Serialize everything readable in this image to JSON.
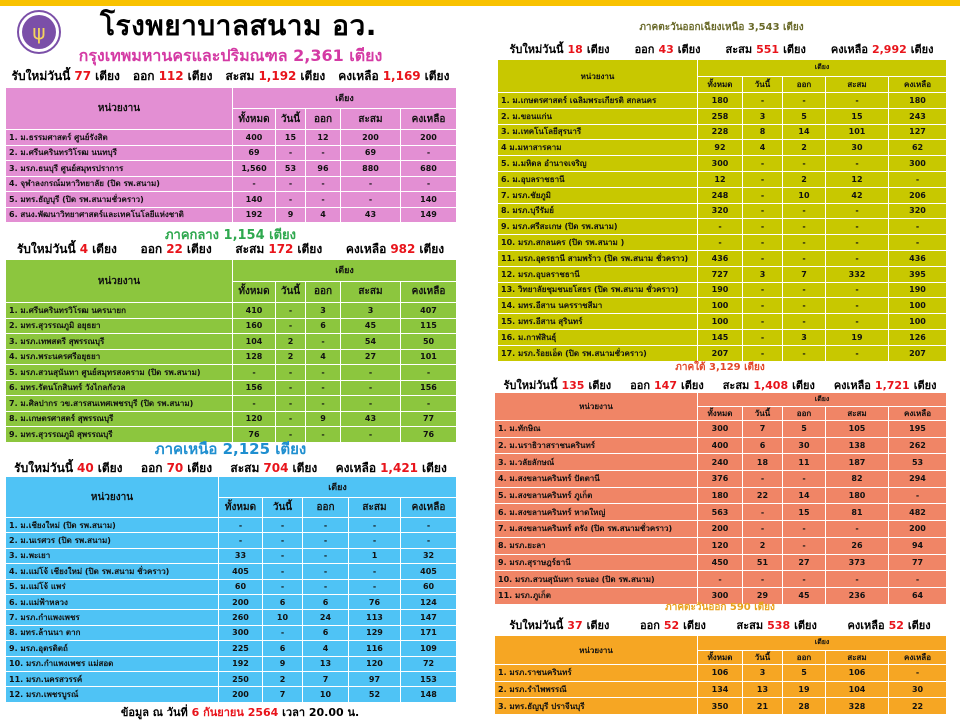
{
  "title": "โรงพยาบาลสนาม อว.",
  "logo_icon": "trident-seal",
  "labels": {
    "unit": "หน่วยงาน",
    "beds": "เตียง",
    "total": "ทั้งหมด",
    "today": "วันนี้",
    "out": "ออก",
    "accum": "สะสม",
    "remain": "คงเหลือ",
    "new_today": "รับใหม่วันนี้",
    "bed_unit": "เตียง"
  },
  "footer": {
    "prefix": "ข้อมูล ณ วันที่",
    "date": "6  กันยายน 2564",
    "suffix": "เวลา 20.00 น."
  },
  "regions": [
    {
      "id": "bangkok",
      "title": "กรุงเทพมหานครและปริมณฑล  2,361 เตียง",
      "colors": {
        "table": "#e38fd3",
        "title": "#d43aa4"
      },
      "summary": {
        "new": "77",
        "out": "112",
        "accum": "1,192",
        "remain": "1,169"
      },
      "rows": [
        [
          "1. ม.ธรรมศาสตร์ ศูนย์รังสิต",
          "400",
          "15",
          "12",
          "200",
          "200"
        ],
        [
          "2. ม.ศรีนครินทรวิโรฒ นนทบุรี",
          "69",
          "-",
          "-",
          "69",
          "-"
        ],
        [
          "3. มรภ.ธนบุรี ศูนย์สมุทรปราการ",
          "1,560",
          "53",
          "96",
          "880",
          "680"
        ],
        [
          "4. จุฬาลงกรณ์มหาวิทยาลัย  (ปิด รพ.สนาม)",
          "-",
          "-",
          "-",
          "-",
          "-"
        ],
        [
          "5. มทร.ธัญบุรี (ปิด รพ.สนามชั่วคราว)",
          "140",
          "-",
          "-",
          "-",
          "140"
        ],
        [
          "6. สนง.พัฒนาวิทยาศาสตร์และเทคโนโลยีแห่งชาติ",
          "192",
          "9",
          "4",
          "43",
          "149"
        ]
      ]
    },
    {
      "id": "central",
      "title": "ภาคกลาง  1,154 เตียง",
      "colors": {
        "table": "#8cc63e",
        "title": "#2ea84e"
      },
      "summary": {
        "new": "4",
        "out": "22",
        "accum": "172",
        "remain": "982"
      },
      "rows": [
        [
          "1. ม.ศรีนครินทรวิโรฒ นครนายก",
          "410",
          "-",
          "3",
          "3",
          "407"
        ],
        [
          "2. มทร.สุวรรณภูมิ อยุธยา",
          "160",
          "-",
          "6",
          "45",
          "115"
        ],
        [
          "3. มรภ.เทพสตรี สุพรรณบุรี",
          "104",
          "2",
          "-",
          "54",
          "50"
        ],
        [
          "4. มรภ.พระนครศรีอยุธยา",
          "128",
          "2",
          "4",
          "27",
          "101"
        ],
        [
          "5. มรภ.สวนสุนันทา ศูนย์สมุทรสงคราม  (ปิด รพ.สนาม)",
          "-",
          "-",
          "-",
          "-",
          "-"
        ],
        [
          "6. มทร.รัตนโกสินทร์ วังไกลกังวล",
          "156",
          "-",
          "-",
          "-",
          "156"
        ],
        [
          "7. ม.ศิลปากร วข.สารสนเทศเพชรบุรี (ปิด รพ.สนาม)",
          "-",
          "-",
          "-",
          "-",
          "-"
        ],
        [
          "8. ม.เกษตรศาสตร์ สุพรรณบุรี",
          "120",
          "-",
          "9",
          "43",
          "77"
        ],
        [
          "9. มทร.สุวรรณภูมิ  สุพรรณบุรี",
          "76",
          "-",
          "-",
          "-",
          "76"
        ]
      ]
    },
    {
      "id": "north",
      "title": "ภาคเหนือ  2,125 เตียง",
      "colors": {
        "table": "#4fc3f5",
        "title": "#1f8fd0"
      },
      "summary": {
        "new": "40",
        "out": "70",
        "accum": "704",
        "remain": "1,421"
      },
      "rows": [
        [
          "1. ม.เชียงใหม่  (ปิด รพ.สนาม)",
          "-",
          "-",
          "-",
          "-",
          "-"
        ],
        [
          "2. ม.นเรศวร (ปิด รพ.สนาม)",
          "-",
          "-",
          "-",
          "-",
          "-"
        ],
        [
          "3. ม.พะเยา",
          "33",
          "-",
          "-",
          "1",
          "32"
        ],
        [
          "4. ม.แม่โจ้ เชียงใหม่ (ปิด รพ.สนาม ชั่วคราว)",
          "405",
          "-",
          "-",
          "-",
          "405"
        ],
        [
          "5. ม.แม่โจ้ แพร่",
          "60",
          "-",
          "-",
          "-",
          "60"
        ],
        [
          "6. ม.แม่ฟ้าหลวง",
          "200",
          "6",
          "6",
          "76",
          "124"
        ],
        [
          "7. มรภ.กำแพงเพชร",
          "260",
          "10",
          "24",
          "113",
          "147"
        ],
        [
          "8. มทร.ล้านนา ตาก",
          "300",
          "-",
          "6",
          "129",
          "171"
        ],
        [
          "9. มรภ.อุตรดิตถ์",
          "225",
          "6",
          "4",
          "116",
          "109"
        ],
        [
          "10. มรภ.กำแพงเพชร แม่สอด",
          "192",
          "9",
          "13",
          "120",
          "72"
        ],
        [
          "11. มรภ.นครสวรรค์",
          "250",
          "2",
          "7",
          "97",
          "153"
        ],
        [
          "12. มรภ.เพชรบูรณ์",
          "200",
          "7",
          "10",
          "52",
          "148"
        ]
      ]
    },
    {
      "id": "northeast",
      "title": "ภาคตะวันออกเฉียงเหนือ  3,543 เตียง",
      "colors": {
        "table": "#c8c800",
        "title": "#6a6a2a"
      },
      "summary": {
        "new": "18",
        "out": "43",
        "accum": "551",
        "remain": "2,992"
      },
      "rows": [
        [
          "1. ม.เกษตรศาสตร์ เฉลิมพระเกียรติ สกลนคร",
          "180",
          "-",
          "-",
          "-",
          "180"
        ],
        [
          "2. ม.ขอนแก่น",
          "258",
          "3",
          "5",
          "15",
          "243"
        ],
        [
          "3. ม.เทคโนโลยีสุรนารี",
          "228",
          "8",
          "14",
          "101",
          "127"
        ],
        [
          "4  ม.มหาสารคาม",
          "92",
          "4",
          "2",
          "30",
          "62"
        ],
        [
          "5. ม.มหิดล อำนาจเจริญ",
          "300",
          "-",
          "-",
          "-",
          "300"
        ],
        [
          "6. ม.อุบลราชธานี",
          "12",
          "-",
          "2",
          "12",
          "-"
        ],
        [
          "7. มรภ.ชัยภูมิ",
          "248",
          "-",
          "10",
          "42",
          "206"
        ],
        [
          "8. มรภ.บุรีรัมย์",
          "320",
          "-",
          "-",
          "-",
          "320"
        ],
        [
          "9. มรภ.ศรีสะเกษ  (ปิด รพ.สนาม)",
          "-",
          "-",
          "-",
          "-",
          "-"
        ],
        [
          "10. มรภ.สกลนคร (ปิด รพ.สนาม )",
          "-",
          "-",
          "-",
          "-",
          "-"
        ],
        [
          "11. มรภ.อุดรธานี สามพร้าว (ปิด รพ.สนาม ชั่วคราว)",
          "436",
          "-",
          "-",
          "-",
          "436"
        ],
        [
          "12. มรภ.อุบลราชธานี",
          "727",
          "3",
          "7",
          "332",
          "395"
        ],
        [
          "13. วิทยาลัยชุมชนยโสธร (ปิด รพ.สนาม ชั่วคราว)",
          "190",
          "-",
          "-",
          "-",
          "190"
        ],
        [
          "14. มทร.อีสาน นครราชสีมา",
          "100",
          "-",
          "-",
          "-",
          "100"
        ],
        [
          "15. มทร.อีสาน สุรินทร์",
          "100",
          "-",
          "-",
          "-",
          "100"
        ],
        [
          "16. ม.กาฬสินธุ์",
          "145",
          "-",
          "3",
          "19",
          "126"
        ],
        [
          "17. มรภ.ร้อยเอ็ด (ปิด รพ.สนามชั่วคราว)",
          "207",
          "-",
          "-",
          "-",
          "207"
        ]
      ]
    },
    {
      "id": "south",
      "title": "ภาคใต้ 3,129 เตียง",
      "colors": {
        "table": "#f08566",
        "title": "#e2472a"
      },
      "summary": {
        "new": "135",
        "out": "147",
        "accum": "1,408",
        "remain": "1,721"
      },
      "rows": [
        [
          "1. ม.ทักษิณ",
          "300",
          "7",
          "5",
          "105",
          "195"
        ],
        [
          "2. ม.นราธิวาสราชนครินทร์",
          "400",
          "6",
          "30",
          "138",
          "262"
        ],
        [
          "3. ม.วลัยลักษณ์",
          "240",
          "18",
          "11",
          "187",
          "53"
        ],
        [
          "4. ม.สงขลานครินทร์ ปัตตานี",
          "376",
          "-",
          "-",
          "82",
          "294"
        ],
        [
          "5. ม.สงขลานครินทร์ ภูเก็ต",
          "180",
          "22",
          "14",
          "180",
          "-"
        ],
        [
          "6. ม.สงขลานครินทร์ หาดใหญ่",
          "563",
          "-",
          "15",
          "81",
          "482"
        ],
        [
          "7. ม.สงขลานครินทร์ ตรัง (ปิด รพ.สนามชั่วคราว)",
          "200",
          "-",
          "-",
          "-",
          "200"
        ],
        [
          "8. มรภ.ยะลา",
          "120",
          "2",
          "-",
          "26",
          "94"
        ],
        [
          "9. มรภ.สุราษฎร์ธานี",
          "450",
          "51",
          "27",
          "373",
          "77"
        ],
        [
          "10. มรภ.สวนสุนันทา ระนอง (ปิด รพ.สนาม)",
          "-",
          "-",
          "-",
          "-",
          "-"
        ],
        [
          "11. มรภ.ภูเก็ต",
          "300",
          "29",
          "45",
          "236",
          "64"
        ]
      ]
    },
    {
      "id": "east",
      "title": "ภาคตะวันออก 590 เตียง",
      "colors": {
        "table": "#f6a623",
        "title": "#e8a21e"
      },
      "summary": {
        "new": "37",
        "out": "52",
        "accum": "538",
        "remain": "52"
      },
      "rows": [
        [
          "1. มรภ.ราชนครินทร์",
          "106",
          "3",
          "5",
          "106",
          "-"
        ],
        [
          "2. มรภ.รำไพพรรณี",
          "134",
          "13",
          "19",
          "104",
          "30"
        ],
        [
          "3. มทร.ธัญบุรี  ปราจีนบุรี",
          "350",
          "21",
          "28",
          "328",
          "22"
        ]
      ]
    }
  ]
}
